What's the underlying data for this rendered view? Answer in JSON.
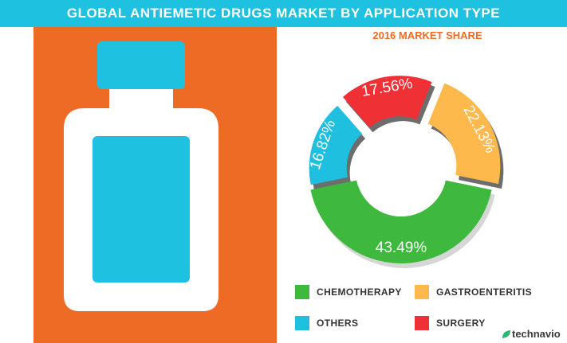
{
  "header": {
    "title": "GLOBAL ANTIEMETIC DRUGS MARKET BY APPLICATION TYPE"
  },
  "colors": {
    "header": "#1ec2e0",
    "panel": "#ee6b26",
    "bottle": "#ffffff",
    "bottle_label": "#1ec2e0",
    "brand_mark": "#2bb673"
  },
  "chart_data": {
    "type": "pie",
    "subtitle": "2016 MARKET SHARE",
    "unit": "%",
    "series": [
      {
        "name": "CHEMOTHERAPY",
        "label": "43.49%",
        "value": 43.49,
        "color": "#3eb93e"
      },
      {
        "name": "OTHERS",
        "label": "16.82%",
        "value": 16.82,
        "color": "#1ebfdf"
      },
      {
        "name": "SURGERY",
        "label": "17.56%",
        "value": 17.56,
        "color": "#ef3136"
      },
      {
        "name": "GASTROENTERITIS",
        "label": "22.13%",
        "value": 22.13,
        "color": "#fdb94c"
      }
    ]
  },
  "legend": [
    {
      "label": "CHEMOTHERAPY",
      "color": "#3eb93e"
    },
    {
      "label": "GASTROENTERITIS",
      "color": "#fdb94c"
    },
    {
      "label": "OTHERS",
      "color": "#1ebfdf"
    },
    {
      "label": "SURGERY",
      "color": "#ef3136"
    }
  ],
  "brand": {
    "name": "technavio",
    "icon": "leaf-icon"
  }
}
